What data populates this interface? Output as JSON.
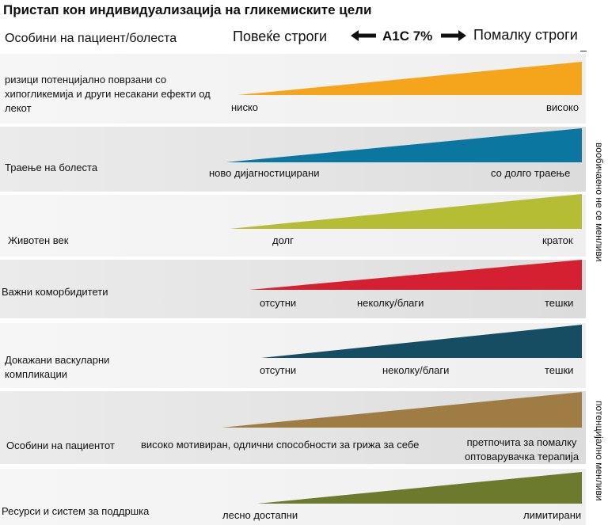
{
  "title": "Пристап кон индивидуализација на гликемиските цели",
  "header": {
    "left_label": "Особини на пациент/болеста",
    "more_strict": "Повеќе строги",
    "center": "A1C 7%",
    "less_strict": "Помалку строги"
  },
  "side_labels": {
    "top": "вообичаено не се менливи",
    "bottom": "потенцијално менливи"
  },
  "rows": [
    {
      "label": "ризици потенцијално поврзани со хипогликемија и други несакани ефекти од лекот",
      "color": "#f4a51c",
      "scale": [
        "ниско",
        "високо"
      ]
    },
    {
      "label": "Траење на болеста",
      "color": "#0b76a0",
      "scale": [
        "ново дијагностицирани",
        "со долго траење"
      ]
    },
    {
      "label": "Животен век",
      "color": "#b5bd34",
      "scale": [
        "долг",
        "краток"
      ]
    },
    {
      "label": "Важни коморбидитети",
      "color": "#d42030",
      "scale": [
        "отсутни",
        "неколку/благи",
        "тешки"
      ]
    },
    {
      "label": "Докажани васкуларни компликации",
      "color": "#164d63",
      "scale": [
        "отсутни",
        "неколку/благи",
        "тешки"
      ]
    },
    {
      "label": "Особини на пациентот",
      "color": "#a07c45",
      "scale": [
        "високо мотивиран, одлични способности за грижа за себе",
        "претпочита за помалку оптоварувачка терапија"
      ]
    },
    {
      "label": "Ресурси  и систем за поддршка",
      "color": "#6b7a2c",
      "scale": [
        "лесно достапни",
        "лимитирани"
      ]
    }
  ]
}
